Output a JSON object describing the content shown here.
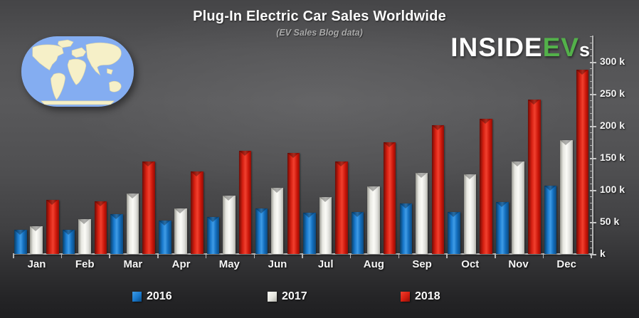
{
  "title": "Plug-In Electric Car Sales Worldwide",
  "subtitle": "(EV Sales Blog data)",
  "logo": {
    "part1": "INSIDE",
    "part2": "EV",
    "part3": "s",
    "accent_color": "#53b14a"
  },
  "colors": {
    "series_2016": "#1878cc",
    "series_2017": "#f2f2ee",
    "series_2018": "#dd1f10",
    "background": "#4e4e50",
    "axis": "#b6b6b6",
    "text": "#f6f6f6"
  },
  "chart_data": {
    "type": "bar",
    "title": "Plug-In Electric Car Sales Worldwide",
    "subtitle": "(EV Sales Blog data)",
    "categories": [
      "Jan",
      "Feb",
      "Mar",
      "Apr",
      "May",
      "Jun",
      "Jul",
      "Aug",
      "Sep",
      "Oct",
      "Nov",
      "Dec"
    ],
    "series": [
      {
        "name": "2016",
        "color": "#1878cc",
        "values": [
          38,
          38,
          62,
          52,
          58,
          71,
          64,
          66,
          79,
          66,
          81,
          107
        ]
      },
      {
        "name": "2017",
        "color": "#f2f2ee",
        "values": [
          43,
          55,
          94,
          71,
          91,
          103,
          89,
          106,
          127,
          124,
          144,
          178
        ]
      },
      {
        "name": "2018",
        "color": "#dd1f10",
        "values": [
          84,
          82,
          144,
          129,
          161,
          158,
          145,
          175,
          201,
          211,
          241,
          288
        ]
      }
    ],
    "unit": "k (thousand vehicles)",
    "xlabel": "",
    "ylabel": "k",
    "ylim": [
      0,
      340
    ],
    "y_major_step": 50,
    "y_minor_step": 10,
    "y_ticks": [
      {
        "value": 300,
        "label": "300 k"
      },
      {
        "value": 250,
        "label": "250 k"
      },
      {
        "value": 200,
        "label": "200 k"
      },
      {
        "value": 150,
        "label": "150 k"
      },
      {
        "value": 100,
        "label": "100 k"
      },
      {
        "value": 50,
        "label": "50 k"
      },
      {
        "value": 0,
        "label": "k"
      }
    ],
    "grid": false,
    "legend_position": "bottom"
  }
}
